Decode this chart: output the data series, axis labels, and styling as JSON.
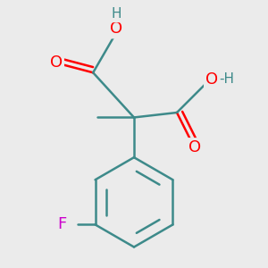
{
  "bg_color": "#ebebeb",
  "bond_color": "#3d8a8a",
  "o_color": "#ff0000",
  "f_color": "#cc00cc",
  "h_color": "#3d8a8a",
  "bond_width": 1.8,
  "font_size_atom": 13,
  "font_size_h": 11,
  "fig_size": [
    3.0,
    3.0
  ],
  "dpi": 100,
  "xlim": [
    -1.3,
    1.3
  ],
  "ylim": [
    -1.7,
    1.0
  ]
}
